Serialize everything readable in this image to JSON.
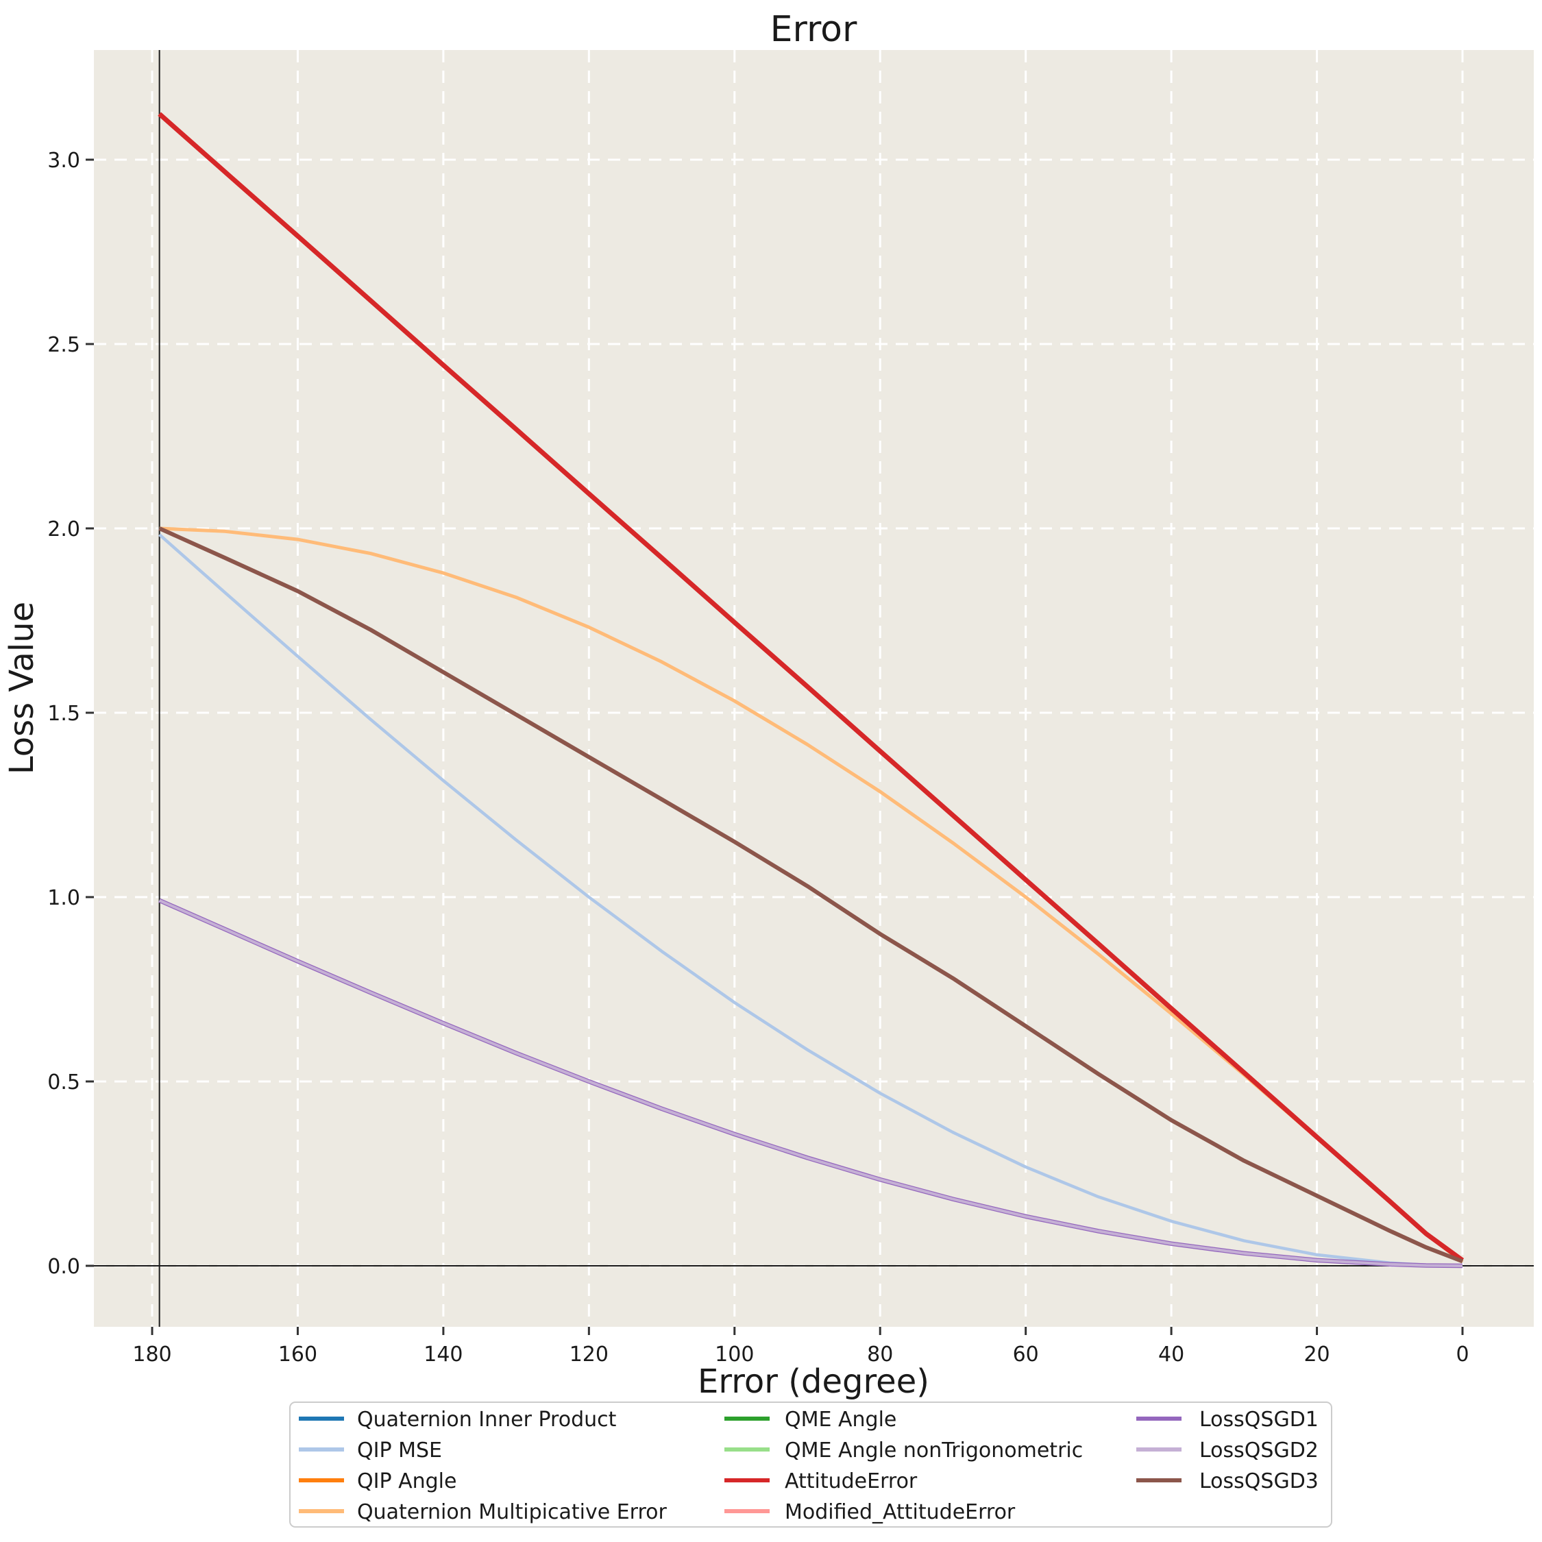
{
  "figure": {
    "title": "Error",
    "background_color": "#ffffff",
    "plot_background_color": "#edeae2",
    "grid_color": "#ffffff",
    "text_color": "#1a1a1a"
  },
  "axes": {
    "x_label": "Error (degree)",
    "y_label": "Loss Value",
    "x_ticks": [
      180,
      160,
      140,
      120,
      100,
      80,
      60,
      40,
      20,
      0
    ],
    "y_ticks": [
      "0.0",
      "0.5",
      "1.0",
      "1.5",
      "2.0",
      "2.5",
      "3.0"
    ],
    "x_inverted": true
  },
  "chart_data": {
    "type": "line",
    "title": "Error",
    "xlabel": "Error (degree)",
    "ylabel": "Loss Value",
    "x_axis": {
      "unit": "degree",
      "min": 0,
      "max": 180,
      "inverted": true
    },
    "y_axis": {
      "min": 0.0,
      "max": 3.25
    },
    "grid": {
      "visible": true,
      "style": "dashed",
      "color": "#ffffff"
    },
    "reference_lines": [
      {
        "kind": "vline",
        "x": 179,
        "color": "#1a1a1a"
      },
      {
        "kind": "hline",
        "y": 0,
        "color": "#1a1a1a"
      }
    ],
    "x_samples_deg": [
      179,
      170,
      160,
      150,
      140,
      130,
      120,
      110,
      100,
      90,
      80,
      70,
      60,
      50,
      40,
      30,
      20,
      10,
      5,
      0
    ],
    "curves": {
      "linear_rad": [
        3.124,
        2.967,
        2.793,
        2.618,
        2.443,
        2.269,
        2.094,
        1.92,
        1.745,
        1.571,
        1.396,
        1.222,
        1.047,
        0.873,
        0.698,
        0.524,
        0.349,
        0.175,
        0.087,
        0.015
      ],
      "two_sin_half": [
        2.0,
        1.992,
        1.97,
        1.932,
        1.879,
        1.813,
        1.732,
        1.638,
        1.532,
        1.414,
        1.286,
        1.147,
        1.0,
        0.845,
        0.684,
        0.518,
        0.347,
        0.174,
        0.087,
        0.01
      ],
      "two_one_minus_cos_half": [
        1.983,
        1.826,
        1.653,
        1.482,
        1.316,
        1.155,
        1.0,
        0.853,
        0.714,
        0.586,
        0.468,
        0.362,
        0.268,
        0.187,
        0.121,
        0.068,
        0.03,
        0.008,
        0.002,
        0.0
      ],
      "one_minus_cos_half": [
        0.991,
        0.913,
        0.826,
        0.741,
        0.658,
        0.577,
        0.5,
        0.426,
        0.357,
        0.293,
        0.234,
        0.181,
        0.134,
        0.094,
        0.06,
        0.034,
        0.015,
        0.004,
        0.001,
        0.0
      ],
      "qsgd3_sampled": [
        2.0,
        1.92,
        1.83,
        1.725,
        1.61,
        1.495,
        1.38,
        1.265,
        1.15,
        1.03,
        0.9,
        0.78,
        0.65,
        0.52,
        0.395,
        0.285,
        0.19,
        0.095,
        0.05,
        0.012
      ]
    },
    "series": [
      {
        "label": "Quaternion Inner Product",
        "color": "#1f77b4",
        "curve": "one_minus_cos_half",
        "width": 4.5
      },
      {
        "label": "QIP MSE",
        "color": "#aec7e8",
        "curve": "two_one_minus_cos_half",
        "width": 4.5
      },
      {
        "label": "QIP Angle",
        "color": "#ff7f0e",
        "curve": "linear_rad",
        "width": 5
      },
      {
        "label": "Quaternion Multipicative Error",
        "color": "#ffbb78",
        "curve": "two_sin_half",
        "width": 5
      },
      {
        "label": "QME Angle",
        "color": "#2ca02c",
        "curve": "linear_rad",
        "width": 5
      },
      {
        "label": "QME Angle nonTrigonometric",
        "color": "#98df8a",
        "curve": "qsgd3_sampled",
        "width": 5
      },
      {
        "label": "AttitudeError",
        "color": "#d62728",
        "curve": "linear_rad",
        "width": 7
      },
      {
        "label": "Modified_AttitudeError",
        "color": "#ff9896",
        "curve": "linear_rad",
        "width": 5
      },
      {
        "label": "LossQSGD1",
        "color": "#9467bd",
        "curve": "one_minus_cos_half",
        "width": 6.5
      },
      {
        "label": "LossQSGD2",
        "color": "#c5b0d5",
        "curve": "one_minus_cos_half",
        "width": 4
      },
      {
        "label": "LossQSGD3",
        "color": "#8c564b",
        "curve": "qsgd3_sampled",
        "width": 6
      }
    ],
    "draw_order": [
      0,
      1,
      2,
      3,
      4,
      5,
      7,
      6,
      8,
      9,
      10
    ],
    "legend": {
      "position": "bottom",
      "columns": [
        4,
        4,
        3
      ]
    }
  }
}
